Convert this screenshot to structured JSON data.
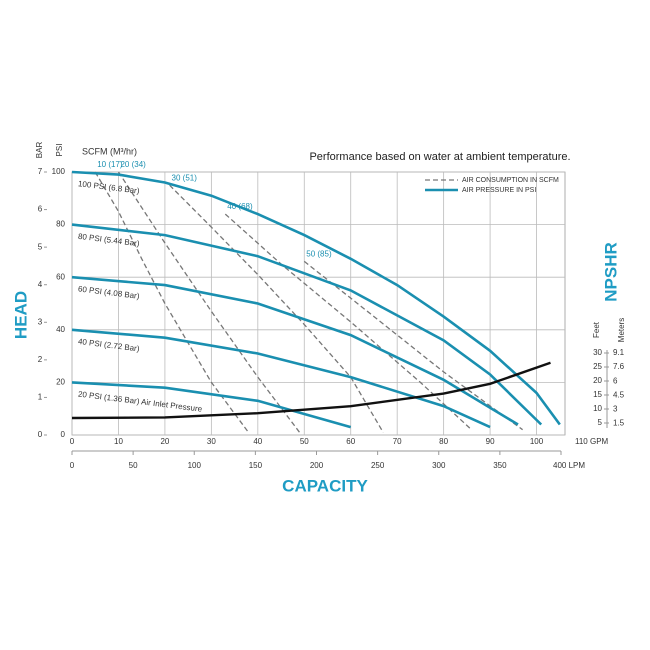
{
  "chart_data": {
    "type": "line",
    "title": "Performance based on water at ambient temperature.",
    "head_label": "HEAD",
    "capacity_label": "CAPACITY",
    "npshr_label": "NPSHR",
    "scfm_label": "SCFM (M³/hr)",
    "grid": true,
    "axes": {
      "psi": {
        "label": "PSI",
        "ylim": [
          0,
          100
        ],
        "yticks": [
          0,
          20,
          40,
          60,
          80,
          100
        ]
      },
      "bar": {
        "label": "BAR",
        "ylim": [
          0,
          7
        ],
        "yticks": [
          0,
          1,
          2,
          3,
          4,
          5,
          6,
          7
        ]
      },
      "gpm": {
        "xlim": [
          0,
          110
        ],
        "xticks": [
          0,
          10,
          20,
          30,
          40,
          50,
          60,
          70,
          80,
          90,
          100,
          {
            "value": 110,
            "label": "110 GPM"
          }
        ]
      },
      "lpm": {
        "xlim": [
          0,
          400
        ],
        "xticks": [
          0,
          50,
          100,
          150,
          200,
          250,
          300,
          350,
          {
            "value": 400,
            "label": "400 LPM"
          }
        ]
      },
      "feet": {
        "label": "Feet",
        "ylim": [
          0,
          30
        ],
        "yticks": [
          5,
          10,
          15,
          20,
          25,
          30
        ]
      },
      "meters": {
        "label": "Meters",
        "ylim": [
          0,
          9.1
        ],
        "yticks": [
          1.5,
          3,
          4.5,
          6,
          7.6,
          9.1
        ]
      }
    },
    "legend": [
      {
        "name": "AIR CONSUMPTION IN SCFM",
        "color": "#777777",
        "dashed": true
      },
      {
        "name": "AIR PRESSURE IN PSI",
        "color": "#1a8fb0",
        "dashed": false
      }
    ],
    "pressure_series": [
      {
        "name": "100 PSI (6.8 Bar)",
        "color": "#1a8fb0",
        "x": [
          0,
          10,
          20,
          30,
          40,
          50,
          60,
          70,
          80,
          90,
          100,
          105
        ],
        "values": [
          100,
          99,
          96,
          91,
          84,
          76,
          67,
          57,
          45,
          32,
          16,
          4
        ]
      },
      {
        "name": "80 PSI (5.44 Bar)",
        "color": "#1a8fb0",
        "x": [
          0,
          20,
          40,
          60,
          80,
          90,
          101
        ],
        "values": [
          80,
          76,
          68,
          55,
          36,
          23,
          4
        ]
      },
      {
        "name": "60 PSI (4.08 Bar)",
        "color": "#1a8fb0",
        "x": [
          0,
          20,
          40,
          60,
          80,
          96
        ],
        "values": [
          60,
          57,
          50,
          38,
          21,
          4
        ]
      },
      {
        "name": "40 PSI (2.72 Bar)",
        "color": "#1a8fb0",
        "x": [
          0,
          20,
          40,
          60,
          80,
          90
        ],
        "values": [
          40,
          37,
          31,
          22,
          11,
          3
        ]
      },
      {
        "name": "20 PSI (1.36 Bar) Air Inlet Pressure",
        "color": "#1a8fb0",
        "x": [
          0,
          20,
          40,
          50,
          60
        ],
        "values": [
          20,
          18,
          13,
          8,
          3
        ]
      }
    ],
    "air_series": [
      {
        "name": "10 (17)",
        "color": "#777777",
        "x": [
          5,
          10,
          15,
          20,
          25,
          30,
          38
        ],
        "values": [
          100,
          85,
          67,
          50,
          35,
          20,
          1
        ]
      },
      {
        "name": "20 (34)",
        "color": "#777777",
        "x": [
          10,
          20,
          30,
          40,
          49
        ],
        "values": [
          100,
          73,
          47,
          22,
          1
        ]
      },
      {
        "name": "30 (51)",
        "color": "#777777",
        "x": [
          21,
          30,
          40,
          50,
          60,
          67
        ],
        "values": [
          95,
          79,
          61,
          42,
          22,
          1
        ]
      },
      {
        "name": "40 (68)",
        "color": "#777777",
        "x": [
          33,
          45,
          60,
          75,
          86
        ],
        "values": [
          84,
          65,
          43,
          20,
          2
        ]
      },
      {
        "name": "50 (85)",
        "color": "#777777",
        "x": [
          50,
          65,
          80,
          97
        ],
        "values": [
          66,
          45,
          24,
          2
        ]
      }
    ],
    "npshr_series": {
      "color": "#111111",
      "x": [
        0,
        20,
        40,
        60,
        80,
        90,
        103
      ],
      "values": [
        6.8,
        7,
        8.5,
        11,
        15.5,
        19,
        26.5
      ]
    }
  }
}
